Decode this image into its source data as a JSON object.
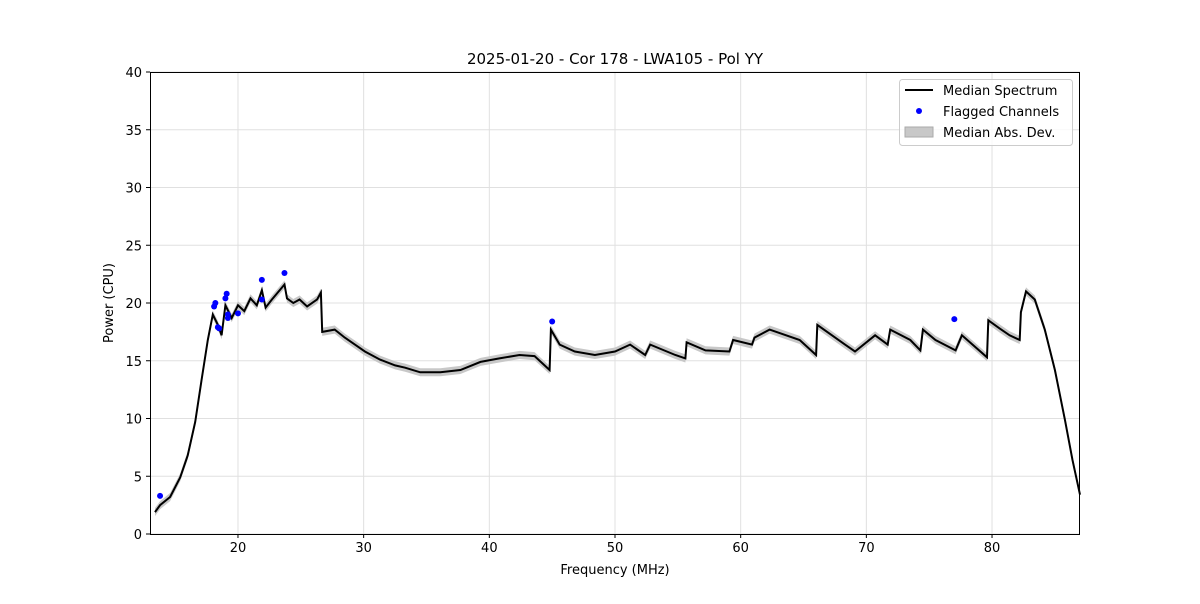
{
  "chart_data": {
    "type": "line",
    "title": "2025-01-20 - Cor 178 - LWA105 - Pol YY",
    "xlabel": "Frequency (MHz)",
    "ylabel": "Power (CPU)",
    "xlim": [
      13,
      87
    ],
    "ylim": [
      0,
      40
    ],
    "xticks": [
      20,
      30,
      40,
      50,
      60,
      70,
      80
    ],
    "yticks": [
      0,
      5,
      10,
      15,
      20,
      25,
      30,
      35,
      40
    ],
    "grid": true,
    "legend": {
      "placement": "top-right",
      "entries": [
        "Median Spectrum",
        "Flagged Channels",
        "Median Abs. Dev."
      ]
    },
    "colors": {
      "median": "#000000",
      "flagged": "#0000ff",
      "mad": "#c8c8c8"
    },
    "mad": 0.35,
    "series": [
      {
        "name": "Median Spectrum",
        "points": [
          [
            13.4,
            1.9
          ],
          [
            13.8,
            2.5
          ],
          [
            14.6,
            3.2
          ],
          [
            15.4,
            4.9
          ],
          [
            16.0,
            6.8
          ],
          [
            16.6,
            9.7
          ],
          [
            17.1,
            13.3
          ],
          [
            17.6,
            16.8
          ],
          [
            18.0,
            19.0
          ],
          [
            18.4,
            18.1
          ],
          [
            18.7,
            17.2
          ],
          [
            19.0,
            19.8
          ],
          [
            19.5,
            18.7
          ],
          [
            20.0,
            19.8
          ],
          [
            20.5,
            19.3
          ],
          [
            21.0,
            20.4
          ],
          [
            21.5,
            19.8
          ],
          [
            21.9,
            21.1
          ],
          [
            22.2,
            19.6
          ],
          [
            22.7,
            20.3
          ],
          [
            23.7,
            21.6
          ],
          [
            23.9,
            20.4
          ],
          [
            24.4,
            20.0
          ],
          [
            24.9,
            20.3
          ],
          [
            25.5,
            19.7
          ],
          [
            26.3,
            20.3
          ],
          [
            26.6,
            20.9
          ],
          [
            26.7,
            17.5
          ],
          [
            27.7,
            17.7
          ],
          [
            28.5,
            17.0
          ],
          [
            29.3,
            16.4
          ],
          [
            30.1,
            15.8
          ],
          [
            31.3,
            15.1
          ],
          [
            32.5,
            14.6
          ],
          [
            33.3,
            14.4
          ],
          [
            34.5,
            14.0
          ],
          [
            36.1,
            14.0
          ],
          [
            37.7,
            14.2
          ],
          [
            39.3,
            14.9
          ],
          [
            40.8,
            15.2
          ],
          [
            42.4,
            15.5
          ],
          [
            43.6,
            15.4
          ],
          [
            44.8,
            14.2
          ],
          [
            44.9,
            17.7
          ],
          [
            45.6,
            16.4
          ],
          [
            46.8,
            15.8
          ],
          [
            48.4,
            15.5
          ],
          [
            50.0,
            15.8
          ],
          [
            51.2,
            16.4
          ],
          [
            52.4,
            15.5
          ],
          [
            52.8,
            16.4
          ],
          [
            54.8,
            15.5
          ],
          [
            55.6,
            15.2
          ],
          [
            55.7,
            16.6
          ],
          [
            57.2,
            15.9
          ],
          [
            59.1,
            15.8
          ],
          [
            59.4,
            16.8
          ],
          [
            60.9,
            16.4
          ],
          [
            61.1,
            17.0
          ],
          [
            62.3,
            17.7
          ],
          [
            64.7,
            16.8
          ],
          [
            66.0,
            15.5
          ],
          [
            66.1,
            18.1
          ],
          [
            68.3,
            16.4
          ],
          [
            69.1,
            15.8
          ],
          [
            70.7,
            17.2
          ],
          [
            71.7,
            16.4
          ],
          [
            71.9,
            17.7
          ],
          [
            73.5,
            16.8
          ],
          [
            74.3,
            15.9
          ],
          [
            74.5,
            17.7
          ],
          [
            75.5,
            16.8
          ],
          [
            77.1,
            15.9
          ],
          [
            77.6,
            17.2
          ],
          [
            79.6,
            15.3
          ],
          [
            79.7,
            18.5
          ],
          [
            80.6,
            17.8
          ],
          [
            81.4,
            17.2
          ],
          [
            82.2,
            16.8
          ],
          [
            82.3,
            19.2
          ],
          [
            82.7,
            21.0
          ],
          [
            83.4,
            20.3
          ],
          [
            84.2,
            17.7
          ],
          [
            85.0,
            14.2
          ],
          [
            85.8,
            9.9
          ],
          [
            86.4,
            6.4
          ],
          [
            87.0,
            3.4
          ]
        ]
      },
      {
        "name": "Flagged Channels",
        "points": [
          [
            13.8,
            3.3
          ],
          [
            18.1,
            19.7
          ],
          [
            18.2,
            20.0
          ],
          [
            18.5,
            17.8
          ],
          [
            18.4,
            17.9
          ],
          [
            19.0,
            20.4
          ],
          [
            19.1,
            20.8
          ],
          [
            19.2,
            18.7
          ],
          [
            19.2,
            19.0
          ],
          [
            20.0,
            19.1
          ],
          [
            21.9,
            22.0
          ],
          [
            21.9,
            20.3
          ],
          [
            23.7,
            22.6
          ],
          [
            45.0,
            18.4
          ],
          [
            77.0,
            18.6
          ]
        ]
      }
    ]
  }
}
